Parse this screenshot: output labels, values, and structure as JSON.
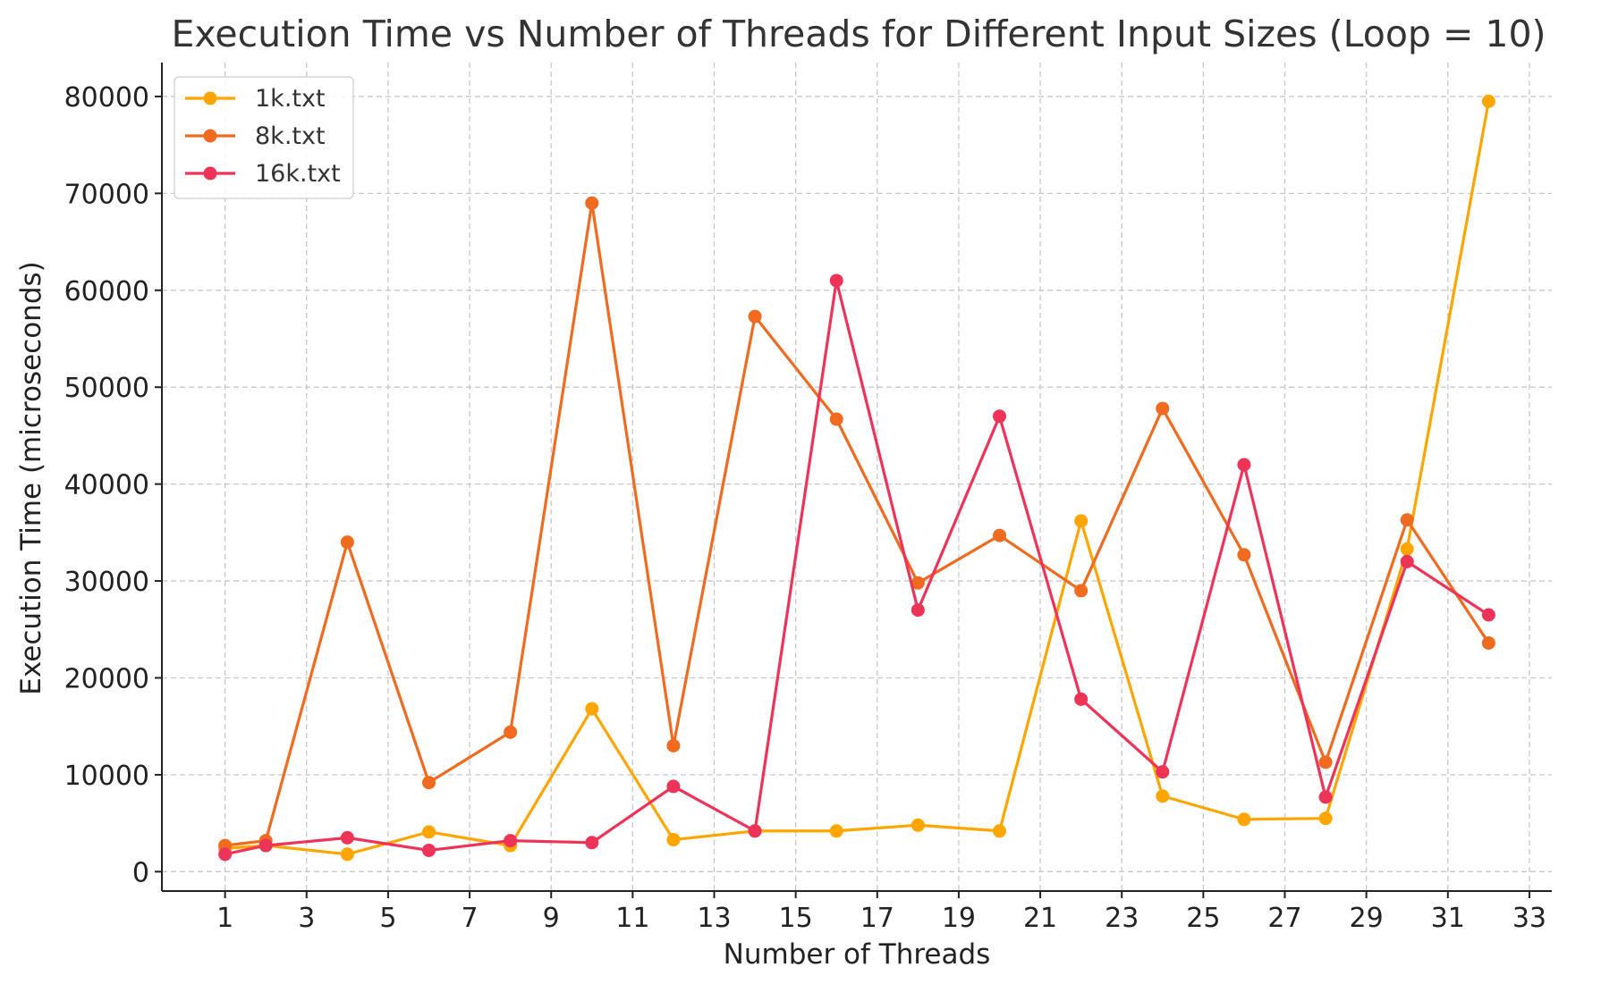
{
  "chart_data": {
    "type": "line",
    "title": "Execution Time vs Number of Threads for Different Input Sizes (Loop = 10)",
    "xlabel": "Number of Threads",
    "ylabel": "Execution Time (microseconds)",
    "x": [
      1,
      2,
      4,
      6,
      8,
      10,
      12,
      14,
      16,
      18,
      20,
      22,
      24,
      26,
      28,
      30,
      32
    ],
    "xlim": [
      -0.55,
      33.55
    ],
    "ylim": [
      -2000,
      83500
    ],
    "xticks": [
      1,
      3,
      5,
      7,
      9,
      11,
      13,
      15,
      17,
      19,
      21,
      23,
      25,
      27,
      29,
      31,
      33
    ],
    "xtick_labels": [
      "1",
      "3",
      "5",
      "7",
      "9",
      "11",
      "13",
      "15",
      "17",
      "19",
      "21",
      "23",
      "25",
      "27",
      "29",
      "31",
      "33"
    ],
    "yticks": [
      0,
      10000,
      20000,
      30000,
      40000,
      50000,
      60000,
      70000,
      80000
    ],
    "ytick_labels": [
      "0",
      "10000",
      "20000",
      "30000",
      "40000",
      "50000",
      "60000",
      "70000",
      "80000"
    ],
    "grid": true,
    "legend_position": "top-left",
    "series": [
      {
        "name": "1k.txt",
        "color": "#FFA500",
        "values": [
          2400,
          2700,
          1800,
          4100,
          2700,
          16800,
          3300,
          4200,
          4200,
          4800,
          4200,
          36200,
          7800,
          5400,
          5500,
          33300,
          79500
        ]
      },
      {
        "name": "8k.txt",
        "color": "#F06A1F",
        "values": [
          2700,
          3200,
          34000,
          9200,
          14400,
          69000,
          13000,
          57300,
          46700,
          29800,
          34700,
          29000,
          47800,
          32700,
          11300,
          36300,
          23600
        ]
      },
      {
        "name": "16k.txt",
        "color": "#EE3358",
        "values": [
          1800,
          2700,
          3500,
          2200,
          3200,
          3000,
          8800,
          4200,
          61000,
          27000,
          47000,
          17800,
          10300,
          42000,
          7700,
          32000,
          26500
        ]
      }
    ]
  }
}
